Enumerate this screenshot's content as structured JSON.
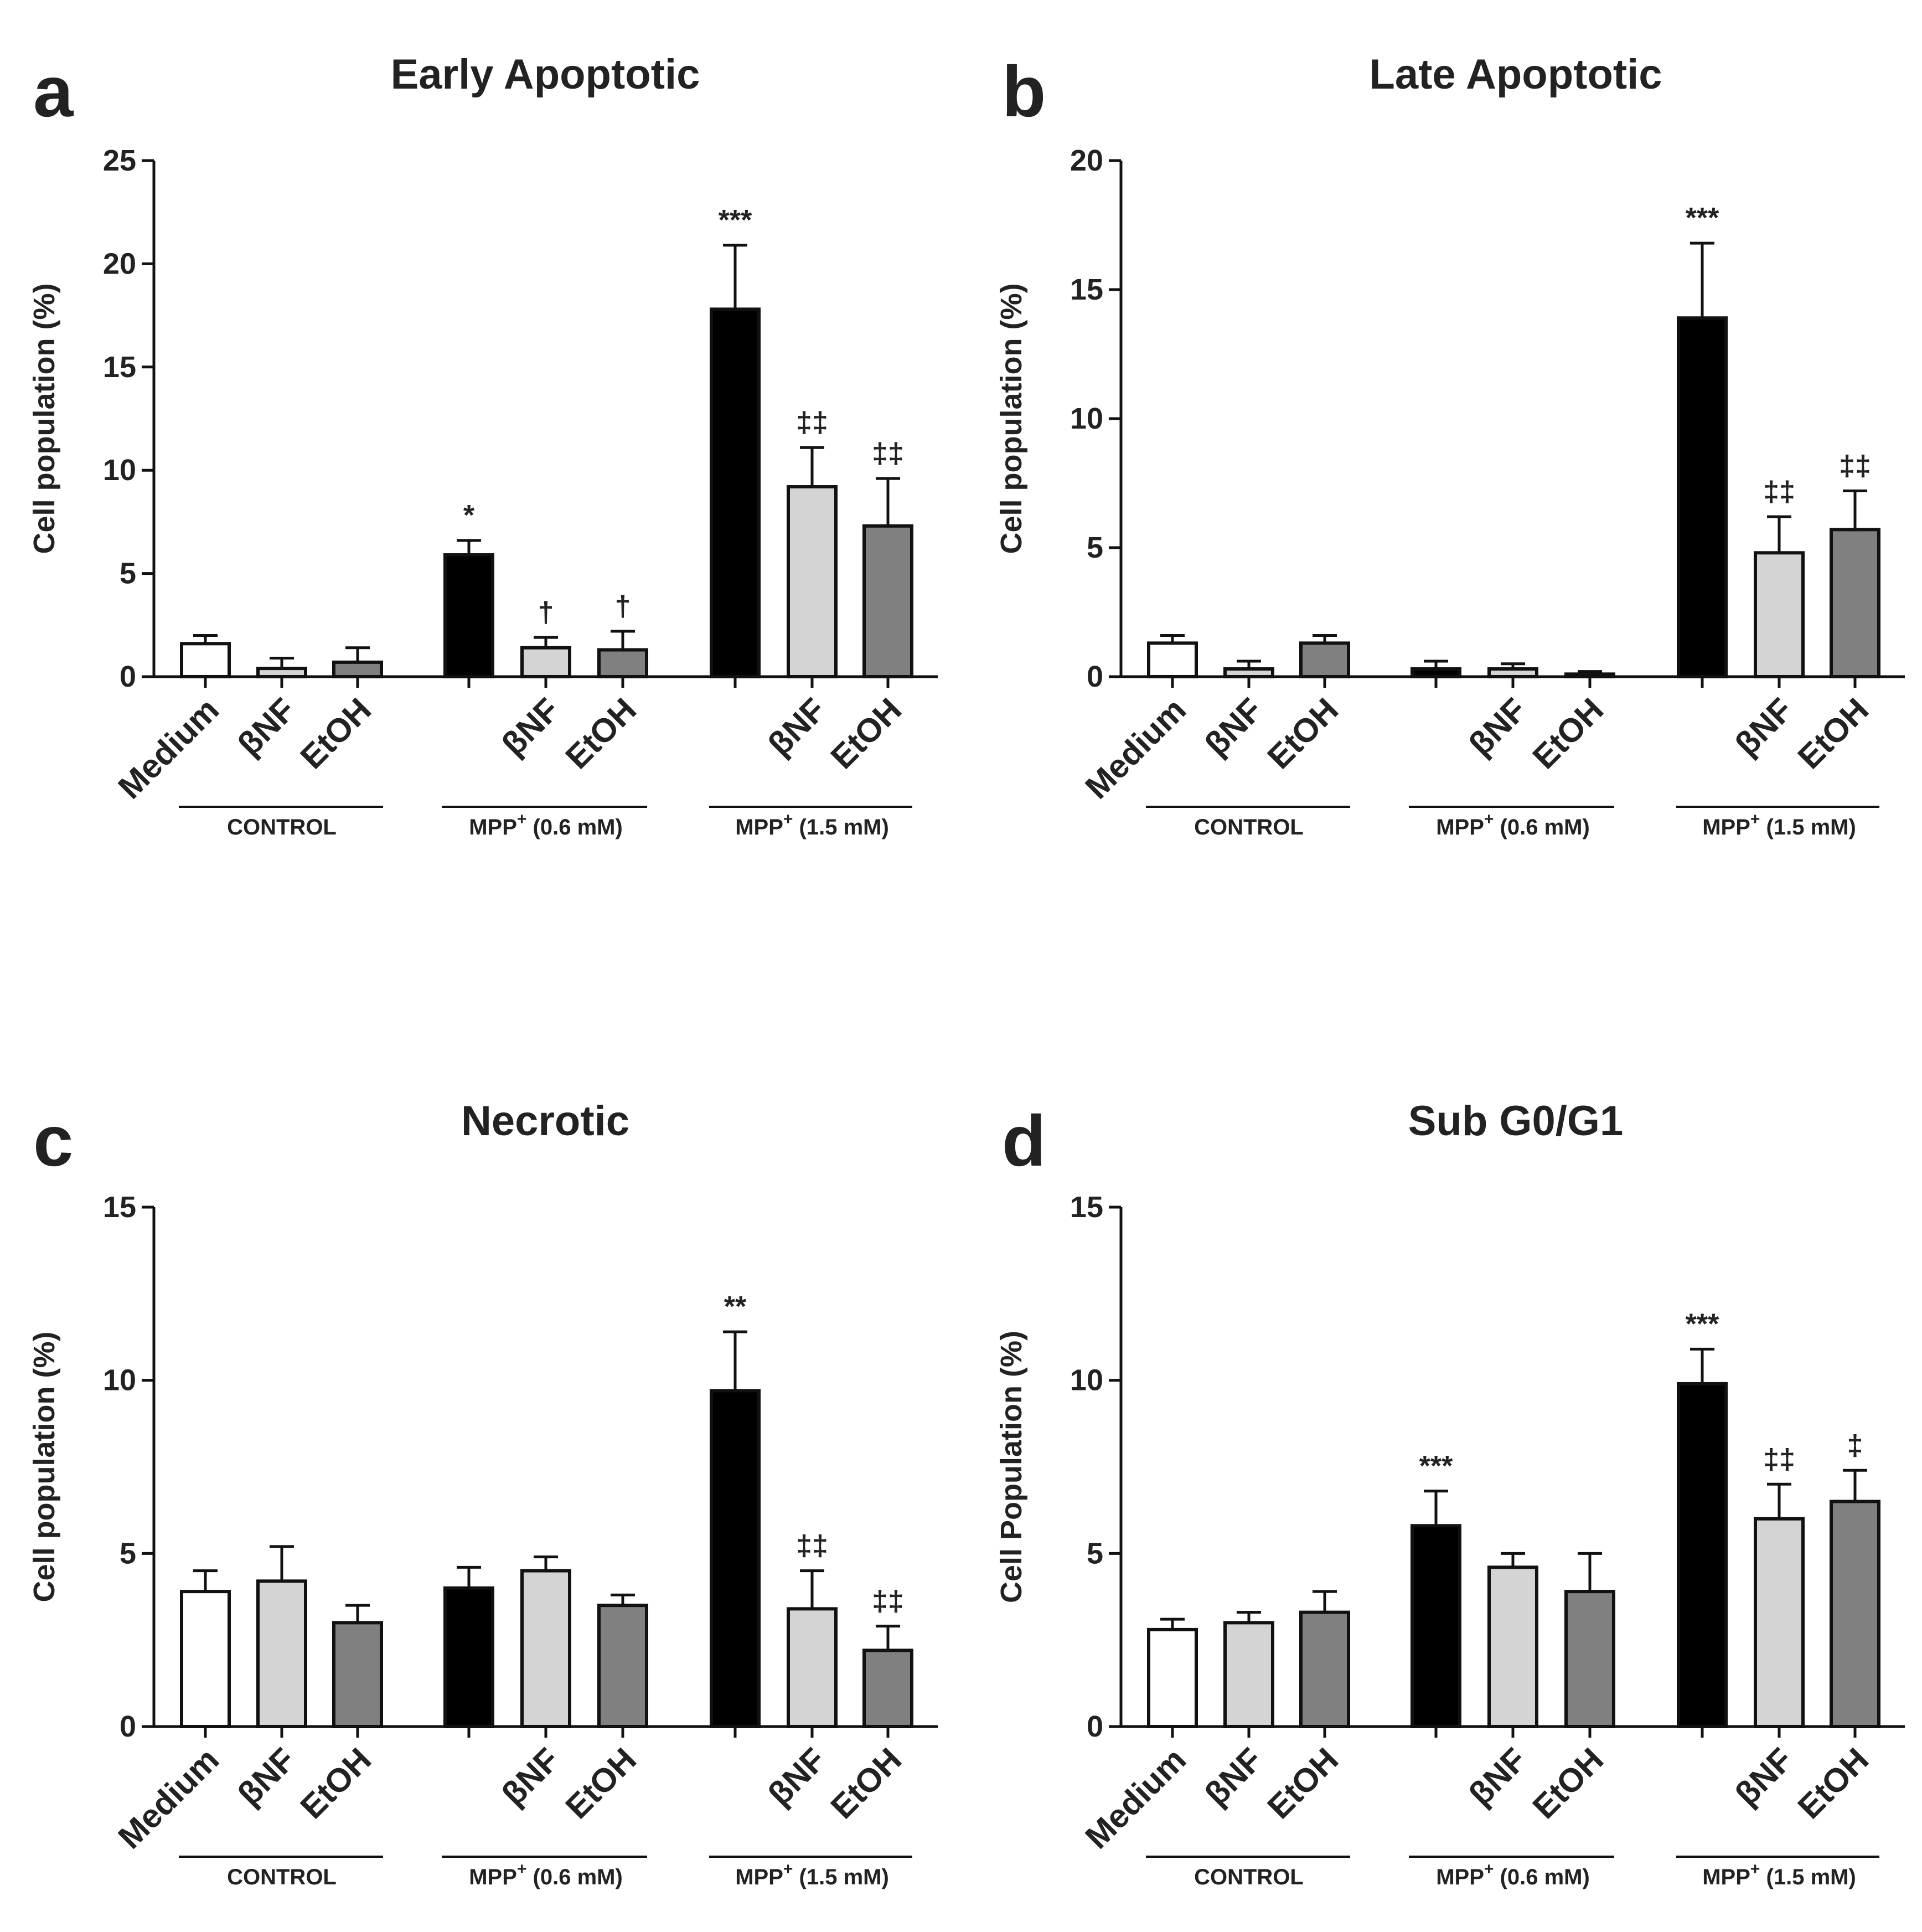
{
  "chart_data": [
    {
      "type": "bar",
      "panel": "a",
      "title": "Early Apoptotic",
      "ylabel": "Cell population (%)",
      "ylim": [
        0,
        25
      ],
      "yticks": [
        0,
        5,
        10,
        15,
        20,
        25
      ],
      "groups": [
        "CONTROL",
        "MPP+ (0.6 mM)",
        "MPP+ (1.5 mM)"
      ],
      "categories": [
        "Medium",
        "βNF",
        "EtOH",
        "",
        "βNF",
        "EtOH",
        "",
        "βNF",
        "EtOH"
      ],
      "values": [
        1.6,
        0.4,
        0.7,
        5.9,
        1.4,
        1.3,
        17.8,
        9.2,
        7.3
      ],
      "errors": [
        0.4,
        0.5,
        0.7,
        0.7,
        0.5,
        0.9,
        3.1,
        1.9,
        2.3
      ],
      "annotations": [
        "",
        "",
        "",
        "*",
        "†",
        "†",
        "***",
        "‡‡",
        "‡‡"
      ]
    },
    {
      "type": "bar",
      "panel": "b",
      "title": "Late Apoptotic",
      "ylabel": "Cell population (%)",
      "ylim": [
        0,
        20
      ],
      "yticks": [
        0,
        5,
        10,
        15,
        20
      ],
      "groups": [
        "CONTROL",
        "MPP+ (0.6 mM)",
        "MPP+ (1.5 mM)"
      ],
      "categories": [
        "Medium",
        "βNF",
        "EtOH",
        "",
        "βNF",
        "EtOH",
        "",
        "βNF",
        "EtOH"
      ],
      "values": [
        1.3,
        0.3,
        1.3,
        0.3,
        0.3,
        0.1,
        13.9,
        4.8,
        5.7
      ],
      "errors": [
        0.3,
        0.3,
        0.3,
        0.3,
        0.2,
        0.1,
        2.9,
        1.4,
        1.5
      ],
      "annotations": [
        "",
        "",
        "",
        "",
        "",
        "",
        "***",
        "‡‡",
        "‡‡"
      ]
    },
    {
      "type": "bar",
      "panel": "c",
      "title": "Necrotic",
      "ylabel": "Cell population (%)",
      "ylim": [
        0,
        15
      ],
      "yticks": [
        0,
        5,
        10,
        15
      ],
      "groups": [
        "CONTROL",
        "MPP+ (0.6 mM)",
        "MPP+ (1.5 mM)"
      ],
      "categories": [
        "Medium",
        "βNF",
        "EtOH",
        "",
        "βNF",
        "EtOH",
        "",
        "βNF",
        "EtOH"
      ],
      "values": [
        3.9,
        4.2,
        3.0,
        4.0,
        4.5,
        3.5,
        9.7,
        3.4,
        2.2
      ],
      "errors": [
        0.6,
        1.0,
        0.5,
        0.6,
        0.4,
        0.3,
        1.7,
        1.1,
        0.7
      ],
      "annotations": [
        "",
        "",
        "",
        "",
        "",
        "",
        "**",
        "‡‡",
        "‡‡"
      ]
    },
    {
      "type": "bar",
      "panel": "d",
      "title": "Sub G0/G1",
      "ylabel": "Cell Population (%)",
      "ylim": [
        0,
        15
      ],
      "yticks": [
        0,
        5,
        10,
        15
      ],
      "groups": [
        "CONTROL",
        "MPP+ (0.6 mM)",
        "MPP+ (1.5 mM)"
      ],
      "categories": [
        "Medium",
        "βNF",
        "EtOH",
        "",
        "βNF",
        "EtOH",
        "",
        "βNF",
        "EtOH"
      ],
      "values": [
        2.8,
        3.0,
        3.3,
        5.8,
        4.6,
        3.9,
        9.9,
        6.0,
        6.5
      ],
      "errors": [
        0.3,
        0.3,
        0.6,
        1.0,
        0.4,
        1.1,
        1.0,
        1.0,
        0.9
      ],
      "annotations": [
        "",
        "",
        "",
        "***",
        "",
        "",
        "***",
        "‡‡",
        "‡"
      ]
    }
  ],
  "colors": {
    "bars": [
      "#ffffff",
      "#d4d4d4",
      "#808080",
      "#000000",
      "#d4d4d4",
      "#808080",
      "#000000",
      "#d4d4d4",
      "#808080"
    ],
    "stroke": "#111111",
    "text": "#222222"
  }
}
